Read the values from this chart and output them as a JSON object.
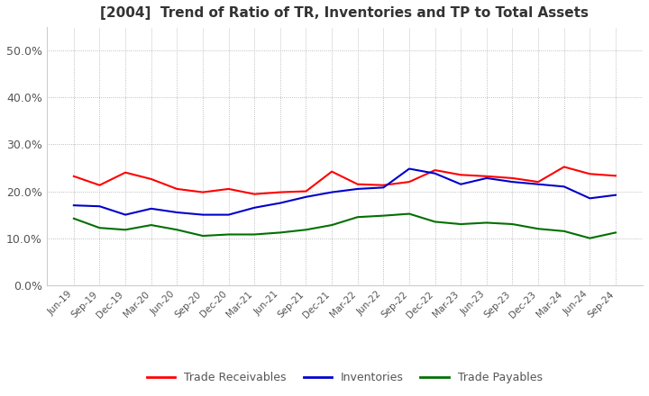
{
  "title": "[2004]  Trend of Ratio of TR, Inventories and TP to Total Assets",
  "title_fontsize": 11,
  "x_labels": [
    "Jun-19",
    "Sep-19",
    "Dec-19",
    "Mar-20",
    "Jun-20",
    "Sep-20",
    "Dec-20",
    "Mar-21",
    "Jun-21",
    "Sep-21",
    "Dec-21",
    "Mar-22",
    "Jun-22",
    "Sep-22",
    "Dec-22",
    "Mar-23",
    "Jun-23",
    "Sep-23",
    "Dec-23",
    "Mar-24",
    "Jun-24",
    "Sep-24"
  ],
  "trade_receivables": [
    0.232,
    0.213,
    0.24,
    0.226,
    0.205,
    0.198,
    0.205,
    0.194,
    0.198,
    0.2,
    0.242,
    0.215,
    0.213,
    0.22,
    0.245,
    0.235,
    0.232,
    0.228,
    0.22,
    0.252,
    0.237,
    0.233
  ],
  "inventories": [
    0.17,
    0.168,
    0.15,
    0.163,
    0.155,
    0.15,
    0.15,
    0.165,
    0.175,
    0.188,
    0.198,
    0.205,
    0.208,
    0.248,
    0.238,
    0.215,
    0.228,
    0.22,
    0.215,
    0.21,
    0.185,
    0.192
  ],
  "trade_payables": [
    0.142,
    0.122,
    0.118,
    0.128,
    0.118,
    0.105,
    0.108,
    0.108,
    0.112,
    0.118,
    0.128,
    0.145,
    0.148,
    0.152,
    0.135,
    0.13,
    0.133,
    0.13,
    0.12,
    0.115,
    0.1,
    0.112
  ],
  "tr_color": "#ff0000",
  "inv_color": "#0000cc",
  "tp_color": "#007000",
  "ylim": [
    0.0,
    0.55
  ],
  "yticks": [
    0.0,
    0.1,
    0.2,
    0.3,
    0.4,
    0.5
  ],
  "ytick_labels": [
    "0.0%",
    "10.0%",
    "20.0%",
    "30.0%",
    "40.0%",
    "50.0%"
  ],
  "grid_color": "#aaaaaa",
  "background_color": "#ffffff",
  "legend_labels": [
    "Trade Receivables",
    "Inventories",
    "Trade Payables"
  ]
}
